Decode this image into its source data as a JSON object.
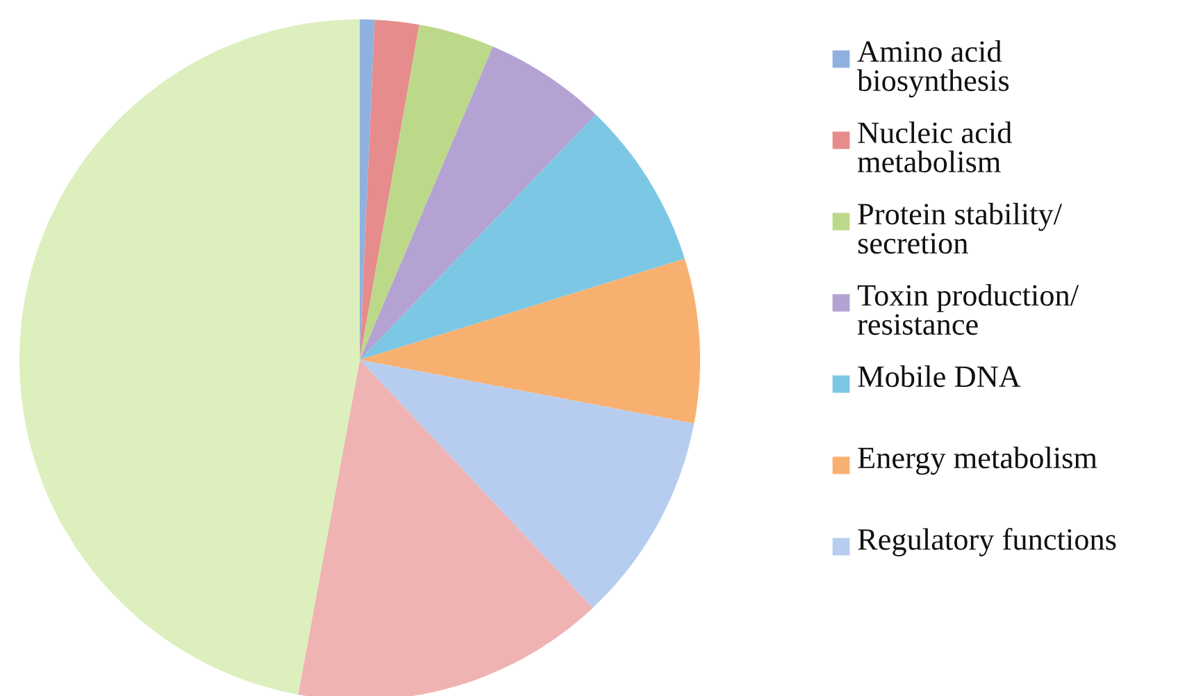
{
  "chart_data": {
    "type": "pie",
    "categories": [
      "Amino acid\nbiosynthesis",
      "Nucleic acid\nmetabolism",
      "Protein stability/\nsecretion",
      "Toxin production/\nresistance",
      "Mobile DNA",
      "Energy metabolism",
      "Regulatory functions",
      null,
      null
    ],
    "values": [
      0.7,
      2.1,
      3.6,
      5.8,
      8.0,
      7.8,
      10.0,
      14.9,
      47.1
    ],
    "colors": [
      "#8fb1e0",
      "#e68c8c",
      "#bcd98a",
      "#b3a2d2",
      "#7cc8e4",
      "#f8b070",
      "#b7cdf0",
      "#f0b3b3",
      "#dcefbd"
    ],
    "legend": "right"
  }
}
